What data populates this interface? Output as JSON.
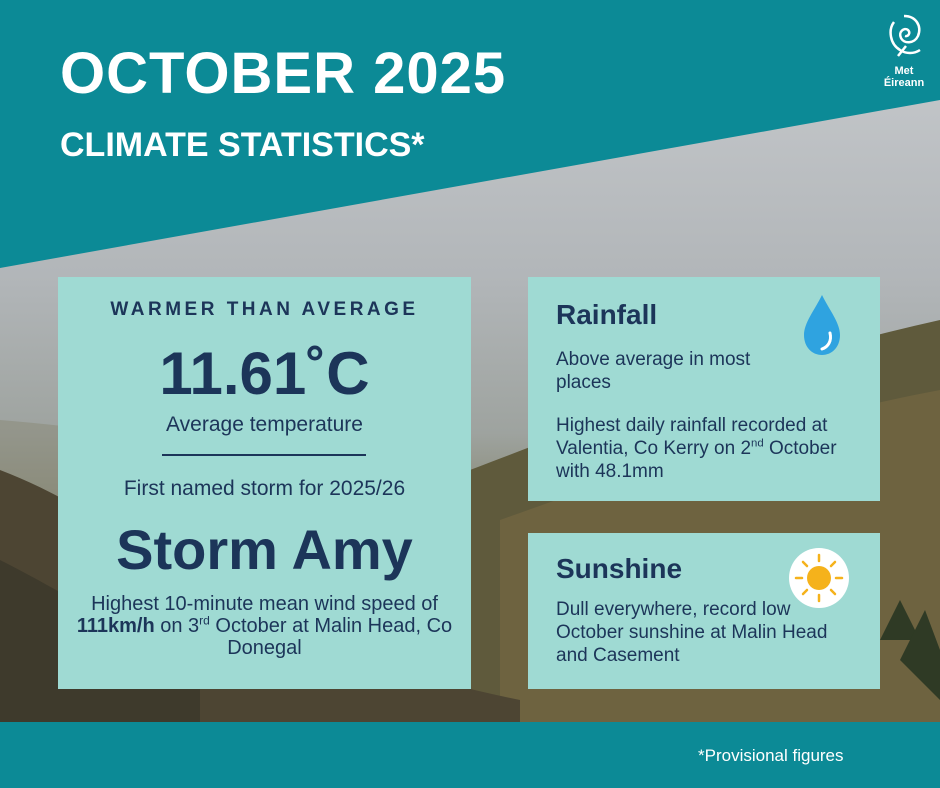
{
  "header": {
    "title": "OCTOBER 2025",
    "subtitle": "CLIMATE STATISTICS*",
    "logo_line1": "Met",
    "logo_line2": "Éireann"
  },
  "temperature_card": {
    "heading": "WARMER THAN AVERAGE",
    "value": "11.61˚C",
    "caption": "Average temperature",
    "storm_intro": "First named storm for 2025/26",
    "storm_name": "Storm Amy",
    "wind_part1": "Highest 10-minute mean wind speed of ",
    "wind_speed": "111km/h",
    "wind_part2": " on 3",
    "wind_sup": "rd",
    "wind_part3": " October at Malin Head, Co Donegal"
  },
  "rainfall_card": {
    "heading": "Rainfall",
    "line1": "Above average in most places",
    "line2_part1": "Highest daily rainfall recorded at Valentia, Co Kerry on 2",
    "line2_sup": "nd",
    "line2_part2": " October with 48.1mm",
    "icon": "water-drop-icon"
  },
  "sunshine_card": {
    "heading": "Sunshine",
    "text": "Dull everywhere, record low October sunshine at Malin Head and Casement",
    "icon": "sun-icon"
  },
  "footer": {
    "note": "*Provisional figures"
  },
  "colors": {
    "teal": "#0c8a96",
    "card": "#9fdad3",
    "navy": "#1c3559",
    "drop": "#2fa3e0",
    "sun": "#f5b21b"
  }
}
